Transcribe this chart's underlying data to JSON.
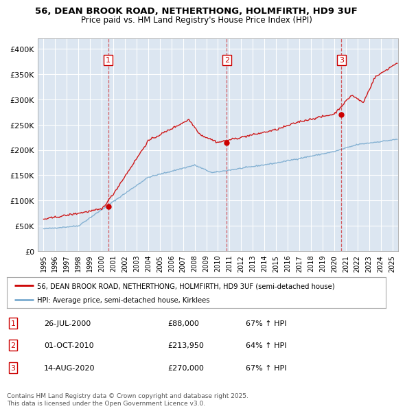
{
  "title1": "56, DEAN BROOK ROAD, NETHERTHONG, HOLMFIRTH, HD9 3UF",
  "title2": "Price paid vs. HM Land Registry's House Price Index (HPI)",
  "background_color": "#dce6f1",
  "plot_bg_color": "#dce6f1",
  "red_line_color": "#cc0000",
  "blue_line_color": "#7aabcf",
  "sale_dates": [
    2000.56,
    2010.75,
    2020.62
  ],
  "sale_prices": [
    88000,
    213950,
    270000
  ],
  "sale_labels": [
    "1",
    "2",
    "3"
  ],
  "legend_red": "56, DEAN BROOK ROAD, NETHERTHONG, HOLMFIRTH, HD9 3UF (semi-detached house)",
  "legend_blue": "HPI: Average price, semi-detached house, Kirklees",
  "table_rows": [
    [
      "1",
      "26-JUL-2000",
      "£88,000",
      "67% ↑ HPI"
    ],
    [
      "2",
      "01-OCT-2010",
      "£213,950",
      "64% ↑ HPI"
    ],
    [
      "3",
      "14-AUG-2020",
      "£270,000",
      "67% ↑ HPI"
    ]
  ],
  "footer": "Contains HM Land Registry data © Crown copyright and database right 2025.\nThis data is licensed under the Open Government Licence v3.0.",
  "ylim_max": 420000,
  "xlim_start": 1994.5,
  "xlim_end": 2025.5,
  "yticks": [
    0,
    50000,
    100000,
    150000,
    200000,
    250000,
    300000,
    350000,
    400000
  ],
  "ytick_labels": [
    "£0",
    "£50K",
    "£100K",
    "£150K",
    "£200K",
    "£250K",
    "£300K",
    "£350K",
    "£400K"
  ]
}
